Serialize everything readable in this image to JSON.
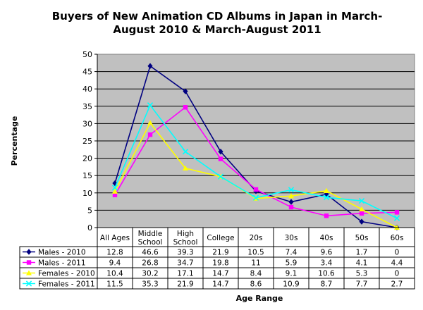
{
  "chart_data": {
    "type": "line",
    "title_lines": [
      "Buyers of New Animation CD Albums in Japan in March-",
      "August 2010 & March-August 2011"
    ],
    "xlabel": "Age Range",
    "ylabel": "Percentage",
    "ylim": [
      0,
      50
    ],
    "yticks": [
      0,
      5,
      10,
      15,
      20,
      25,
      30,
      35,
      40,
      45,
      50
    ],
    "categories": [
      {
        "lines": [
          "All Ages"
        ]
      },
      {
        "lines": [
          "Middle",
          "School"
        ]
      },
      {
        "lines": [
          "High",
          "School"
        ]
      },
      {
        "lines": [
          "College"
        ]
      },
      {
        "lines": [
          "20s"
        ]
      },
      {
        "lines": [
          "30s"
        ]
      },
      {
        "lines": [
          "40s"
        ]
      },
      {
        "lines": [
          "50s"
        ]
      },
      {
        "lines": [
          "60s"
        ]
      }
    ],
    "grid": true,
    "legend": "data-table",
    "series": [
      {
        "name": "Males - 2010",
        "color": "#000080",
        "marker": "diamond",
        "values": [
          12.8,
          46.6,
          39.3,
          21.9,
          10.5,
          7.4,
          9.6,
          1.7,
          0
        ],
        "labels": [
          "12.8",
          "46.6",
          "39.3",
          "21.9",
          "10.5",
          "7.4",
          "9.6",
          "1.7",
          "0"
        ]
      },
      {
        "name": "Males - 2011",
        "color": "#ff00ff",
        "marker": "square",
        "values": [
          9.4,
          26.8,
          34.7,
          19.8,
          11,
          5.9,
          3.4,
          4.1,
          4.4
        ],
        "labels": [
          "9.4",
          "26.8",
          "34.7",
          "19.8",
          "11",
          "5.9",
          "3.4",
          "4.1",
          "4.4"
        ]
      },
      {
        "name": "Females - 2010",
        "color": "#ffff00",
        "marker": "triangle",
        "values": [
          10.4,
          30.2,
          17.1,
          14.7,
          8.4,
          9.1,
          10.6,
          5.3,
          0
        ],
        "labels": [
          "10.4",
          "30.2",
          "17.1",
          "14.7",
          "8.4",
          "9.1",
          "10.6",
          "5.3",
          "0"
        ]
      },
      {
        "name": "Females - 2011",
        "color": "#00ffff",
        "marker": "x",
        "values": [
          11.5,
          35.3,
          21.9,
          14.7,
          8.6,
          10.9,
          8.7,
          7.7,
          2.7
        ],
        "labels": [
          "11.5",
          "35.3",
          "21.9",
          "14.7",
          "8.6",
          "10.9",
          "8.7",
          "7.7",
          "2.7"
        ]
      }
    ]
  }
}
